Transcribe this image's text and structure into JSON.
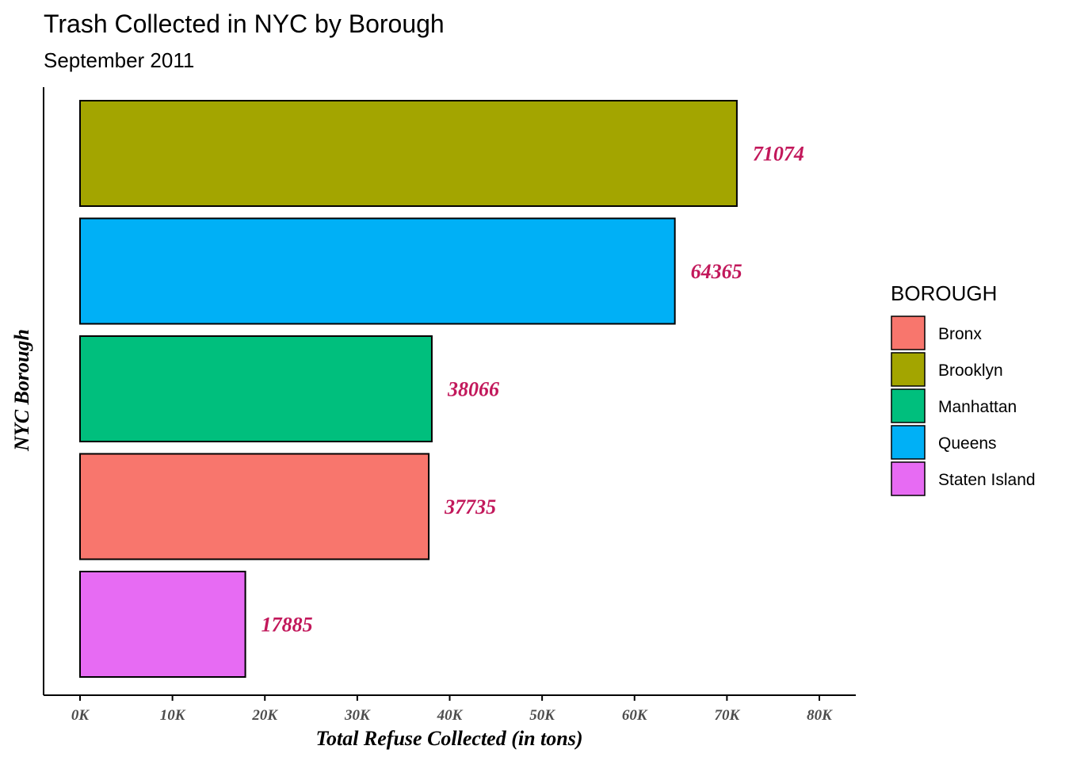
{
  "chart_data": {
    "type": "bar",
    "orientation": "horizontal",
    "title": "Trash Collected in NYC by Borough",
    "subtitle": "September 2011",
    "xlabel": "Total Refuse Collected (in tons)",
    "ylabel": "NYC Borough",
    "categories": [
      "Brooklyn",
      "Queens",
      "Manhattan",
      "Bronx",
      "Staten Island"
    ],
    "values": [
      71074,
      64365,
      38066,
      37735,
      17885
    ],
    "data_labels": [
      "71074",
      "64365",
      "38066",
      "37735",
      "17885"
    ],
    "colors": [
      "#A3A500",
      "#00B0F6",
      "#00BF7D",
      "#F8766D",
      "#E76BF3"
    ],
    "bar_outline_color": "#000000",
    "data_label_color": "#C2185B",
    "xlim": [
      0,
      80000
    ],
    "xticks": [
      0,
      10000,
      20000,
      30000,
      40000,
      50000,
      60000,
      70000,
      80000
    ],
    "xtick_labels": [
      "0K",
      "10K",
      "20K",
      "30K",
      "40K",
      "50K",
      "60K",
      "70K",
      "80K"
    ],
    "grid": false,
    "legend": {
      "title": "BOROUGH",
      "position": "right",
      "entries": [
        {
          "label": "Bronx",
          "color": "#F8766D"
        },
        {
          "label": "Brooklyn",
          "color": "#A3A500"
        },
        {
          "label": "Manhattan",
          "color": "#00BF7D"
        },
        {
          "label": "Queens",
          "color": "#00B0F6"
        },
        {
          "label": "Staten Island",
          "color": "#E76BF3"
        }
      ]
    }
  }
}
